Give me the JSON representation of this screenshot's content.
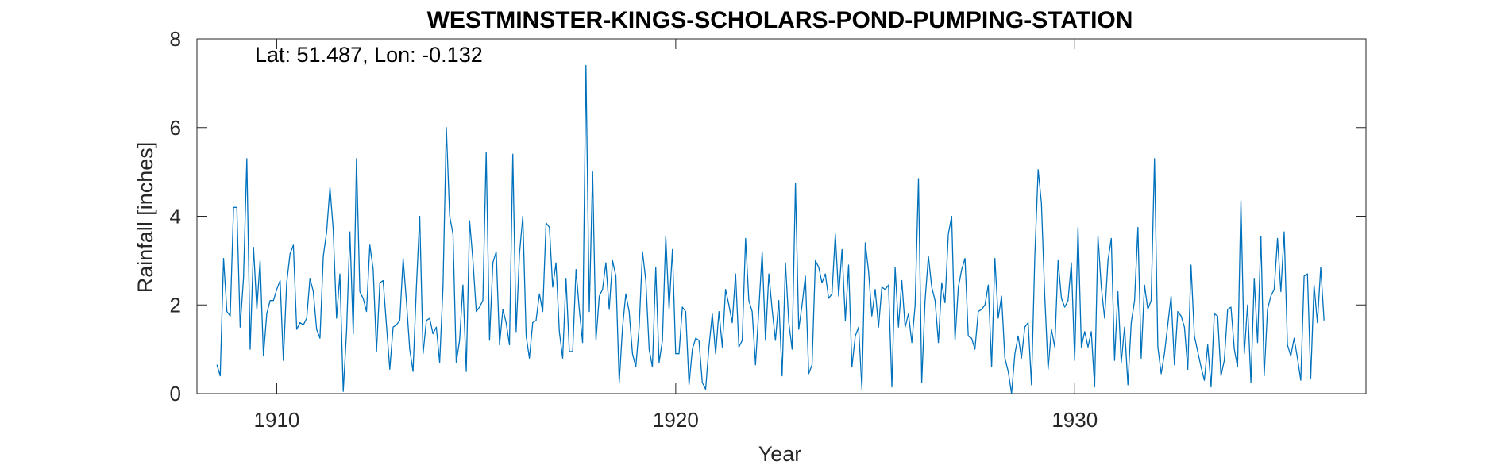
{
  "chart_data": {
    "type": "line",
    "title": "WESTMINSTER-KINGS-SCHOLARS-POND-PUMPING-STATION",
    "annotation": "Lat: 51.487, Lon: -0.132",
    "xlabel": "Year",
    "ylabel": "Rainfall [inches]",
    "xlim": [
      1908,
      1937.3
    ],
    "ylim": [
      0,
      8
    ],
    "xticks": [
      1910,
      1920,
      1930
    ],
    "yticks": [
      0,
      2,
      4,
      6,
      8
    ],
    "grid": false,
    "box": true,
    "line_color": "#0072BD",
    "series": [
      {
        "start_year": 1908.5,
        "step": 0.08333,
        "values": [
          0.65,
          0.4,
          3.05,
          1.85,
          1.75,
          4.2,
          4.2,
          1.5,
          2.6,
          5.3,
          1.0,
          3.3,
          1.9,
          3.0,
          0.85,
          1.8,
          2.1,
          2.1,
          2.35,
          2.55,
          0.75,
          2.5,
          3.15,
          3.35,
          1.45,
          1.6,
          1.55,
          1.7,
          2.6,
          2.3,
          1.45,
          1.25,
          3.1,
          3.65,
          4.65,
          3.7,
          1.7,
          2.7,
          0.05,
          1.4,
          3.65,
          1.35,
          5.3,
          2.3,
          2.15,
          1.85,
          3.35,
          2.8,
          0.95,
          2.5,
          2.55,
          1.55,
          0.55,
          1.5,
          1.55,
          1.65,
          3.05,
          2.1,
          1.0,
          0.5,
          2.4,
          4.0,
          0.9,
          1.65,
          1.7,
          1.35,
          1.5,
          0.7,
          2.4,
          6.0,
          4.0,
          3.6,
          0.7,
          1.2,
          2.45,
          0.5,
          3.9,
          3.0,
          1.85,
          1.95,
          2.1,
          5.45,
          1.2,
          2.95,
          3.2,
          1.1,
          1.9,
          1.6,
          1.1,
          5.4,
          1.4,
          3.15,
          4.0,
          1.3,
          0.8,
          1.6,
          1.65,
          2.25,
          1.85,
          3.85,
          3.75,
          2.4,
          2.95,
          1.4,
          0.8,
          2.6,
          0.95,
          0.95,
          2.8,
          1.9,
          1.15,
          7.4,
          1.85,
          5.0,
          1.2,
          2.2,
          2.35,
          2.95,
          1.9,
          3.0,
          2.65,
          0.25,
          1.5,
          2.25,
          1.85,
          0.9,
          0.6,
          1.5,
          3.2,
          2.55,
          1.0,
          0.6,
          2.85,
          0.7,
          1.2,
          3.55,
          1.9,
          3.25,
          0.9,
          0.9,
          1.95,
          1.85,
          0.2,
          1.0,
          1.25,
          1.2,
          0.25,
          0.1,
          1.05,
          1.8,
          0.9,
          1.85,
          1.05,
          2.35,
          2.0,
          1.6,
          2.7,
          1.05,
          1.2,
          3.5,
          2.1,
          1.85,
          0.65,
          1.9,
          3.2,
          1.2,
          2.7,
          1.9,
          1.2,
          2.1,
          0.4,
          2.95,
          1.6,
          1.0,
          4.75,
          1.45,
          2.0,
          2.65,
          0.45,
          0.65,
          3.0,
          2.85,
          2.5,
          2.7,
          2.15,
          2.25,
          3.6,
          2.2,
          3.25,
          1.65,
          2.9,
          0.6,
          1.3,
          1.5,
          0.1,
          3.4,
          2.75,
          1.75,
          2.35,
          1.5,
          2.4,
          2.35,
          2.45,
          0.15,
          2.85,
          1.5,
          2.55,
          1.5,
          1.8,
          1.15,
          2.0,
          4.85,
          0.25,
          2.1,
          3.1,
          2.4,
          2.1,
          1.15,
          2.5,
          2.05,
          3.6,
          4.0,
          1.2,
          2.4,
          2.8,
          3.05,
          1.3,
          1.25,
          1.0,
          1.85,
          1.9,
          2.0,
          2.45,
          0.6,
          3.05,
          1.7,
          2.2,
          0.8,
          0.5,
          0.0,
          0.9,
          1.3,
          0.8,
          1.5,
          1.6,
          0.2,
          3.1,
          5.05,
          4.3,
          2.2,
          0.55,
          1.45,
          1.05,
          3.0,
          2.15,
          1.95,
          2.1,
          2.95,
          0.75,
          3.75,
          1.05,
          1.4,
          1.05,
          1.4,
          0.15,
          3.55,
          2.4,
          1.7,
          3.0,
          3.5,
          0.75,
          2.3,
          0.7,
          1.5,
          0.2,
          1.6,
          2.1,
          3.75,
          0.8,
          2.45,
          1.9,
          2.1,
          5.3,
          1.05,
          0.45,
          0.9,
          1.55,
          2.2,
          0.65,
          1.85,
          1.75,
          1.5,
          0.55,
          2.9,
          1.3,
          0.95,
          0.6,
          0.3,
          1.1,
          0.15,
          1.8,
          1.75,
          0.4,
          0.75,
          1.9,
          1.95,
          1.0,
          0.6,
          4.35,
          0.9,
          2.0,
          0.25,
          2.6,
          1.15,
          3.55,
          0.4,
          1.9,
          2.2,
          2.35,
          3.5,
          2.3,
          3.65,
          1.1,
          0.85,
          1.25,
          0.8,
          0.3,
          2.65,
          2.7,
          0.35,
          2.45,
          1.6,
          2.85,
          1.65
        ]
      }
    ]
  }
}
